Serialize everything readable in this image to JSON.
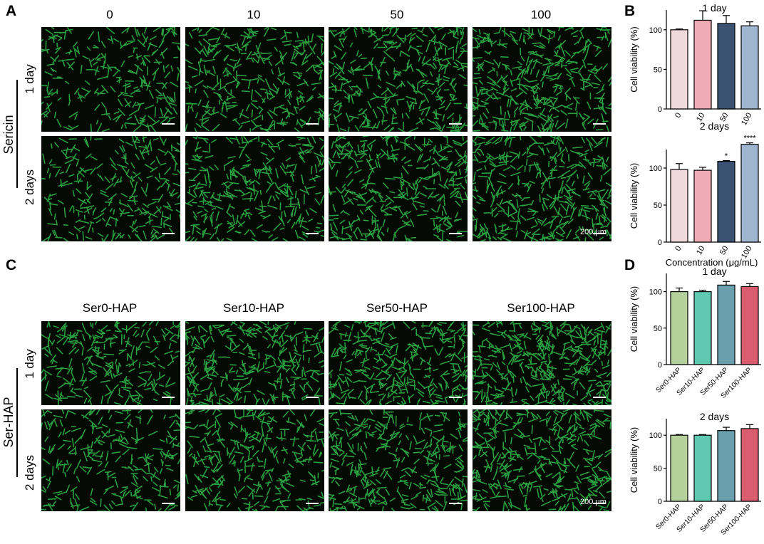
{
  "panels": {
    "A": {
      "letter": "A",
      "columns": [
        "0",
        "10",
        "50",
        "100"
      ],
      "rows": [
        "1 day",
        "2 days"
      ],
      "group": "Sericin",
      "scale": "200 μm"
    },
    "B": {
      "letter": "B"
    },
    "C": {
      "letter": "C",
      "columns": [
        "Ser0-HAP",
        "Ser10-HAP",
        "Ser50-HAP",
        "Ser100-HAP"
      ],
      "rows": [
        "1 day",
        "2 days"
      ],
      "group": "Ser-HAP",
      "scale": "200 μm"
    },
    "D": {
      "letter": "D"
    }
  },
  "colors": {
    "cell_green": "#2fb84a",
    "background": "#050a05",
    "B_bars": [
      "#f0d9dc",
      "#eeabb5",
      "#3a5373",
      "#9fb5d0"
    ],
    "D_bars": [
      "#b5d19b",
      "#5fc9b1",
      "#6a9fae",
      "#d95d6e"
    ]
  },
  "chart_data": [
    {
      "id": "B1",
      "type": "bar",
      "title": "1 day",
      "categories": [
        "0",
        "10",
        "50",
        "100"
      ],
      "values": [
        100,
        112,
        108,
        105
      ],
      "errors": [
        1,
        12,
        10,
        5
      ],
      "sig": [
        "",
        "",
        "",
        ""
      ],
      "ylabel": "Cell viability (%)",
      "xlabel": "",
      "ylim": [
        0,
        125
      ],
      "yticks": [
        0,
        50,
        100
      ]
    },
    {
      "id": "B2",
      "type": "bar",
      "title": "2 days",
      "categories": [
        "0",
        "10",
        "50",
        "100"
      ],
      "values": [
        98,
        97,
        109,
        132
      ],
      "errors": [
        8,
        4,
        1,
        2
      ],
      "sig": [
        "",
        "",
        "*",
        "****"
      ],
      "ylabel": "Cell viability (%)",
      "xlabel": "Concentration (μg/mL)",
      "ylim": [
        0,
        125
      ],
      "yticks": [
        0,
        50,
        100
      ]
    },
    {
      "id": "D1",
      "type": "bar",
      "title": "1 day",
      "categories": [
        "Ser0-HAP",
        "Ser10-HAP",
        "Ser50-HAP",
        "Ser100-HAP"
      ],
      "values": [
        100,
        100,
        109,
        107
      ],
      "errors": [
        5,
        2,
        5,
        4
      ],
      "sig": [
        "",
        "",
        "",
        ""
      ],
      "ylabel": "Cell viability (%)",
      "xlabel": "",
      "ylim": [
        0,
        125
      ],
      "yticks": [
        0,
        50,
        100
      ]
    },
    {
      "id": "D2",
      "type": "bar",
      "title": "2 days",
      "categories": [
        "Ser0-HAP",
        "Ser10-HAP",
        "Ser50-HAP",
        "Ser100-HAP"
      ],
      "values": [
        100,
        100,
        107,
        110
      ],
      "errors": [
        1,
        1,
        5,
        6
      ],
      "sig": [
        "",
        "",
        "",
        ""
      ],
      "ylabel": "Cell viability (%)",
      "xlabel": "",
      "ylim": [
        0,
        125
      ],
      "yticks": [
        0,
        50,
        100
      ]
    }
  ]
}
